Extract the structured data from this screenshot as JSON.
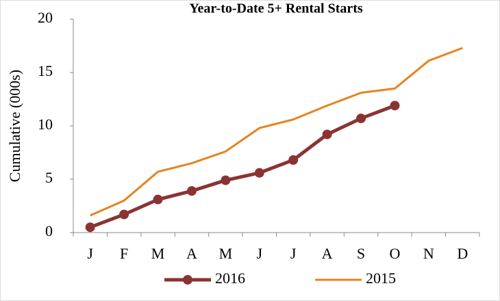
{
  "chart_data": {
    "type": "line",
    "title": "Year-to-Date 5+ Rental Starts",
    "ylabel": "Cumulative (000s)",
    "categories": [
      "J",
      "F",
      "M",
      "A",
      "M",
      "J",
      "J",
      "A",
      "S",
      "O",
      "N",
      "D"
    ],
    "series": [
      {
        "name": "2016",
        "color": "#8b3333",
        "marker": true,
        "values": [
          0.5,
          1.7,
          3.1,
          3.9,
          4.9,
          5.6,
          6.8,
          9.2,
          10.7,
          11.9,
          null,
          null
        ]
      },
      {
        "name": "2015",
        "color": "#e8821e",
        "marker": false,
        "values": [
          1.6,
          3.0,
          5.7,
          6.5,
          7.6,
          9.8,
          10.6,
          11.9,
          13.1,
          13.5,
          16.1,
          17.3
        ]
      }
    ],
    "ylim": [
      0,
      20
    ],
    "yticks": [
      0,
      5,
      10,
      15,
      20
    ],
    "grid": false,
    "legend": "bottom"
  }
}
